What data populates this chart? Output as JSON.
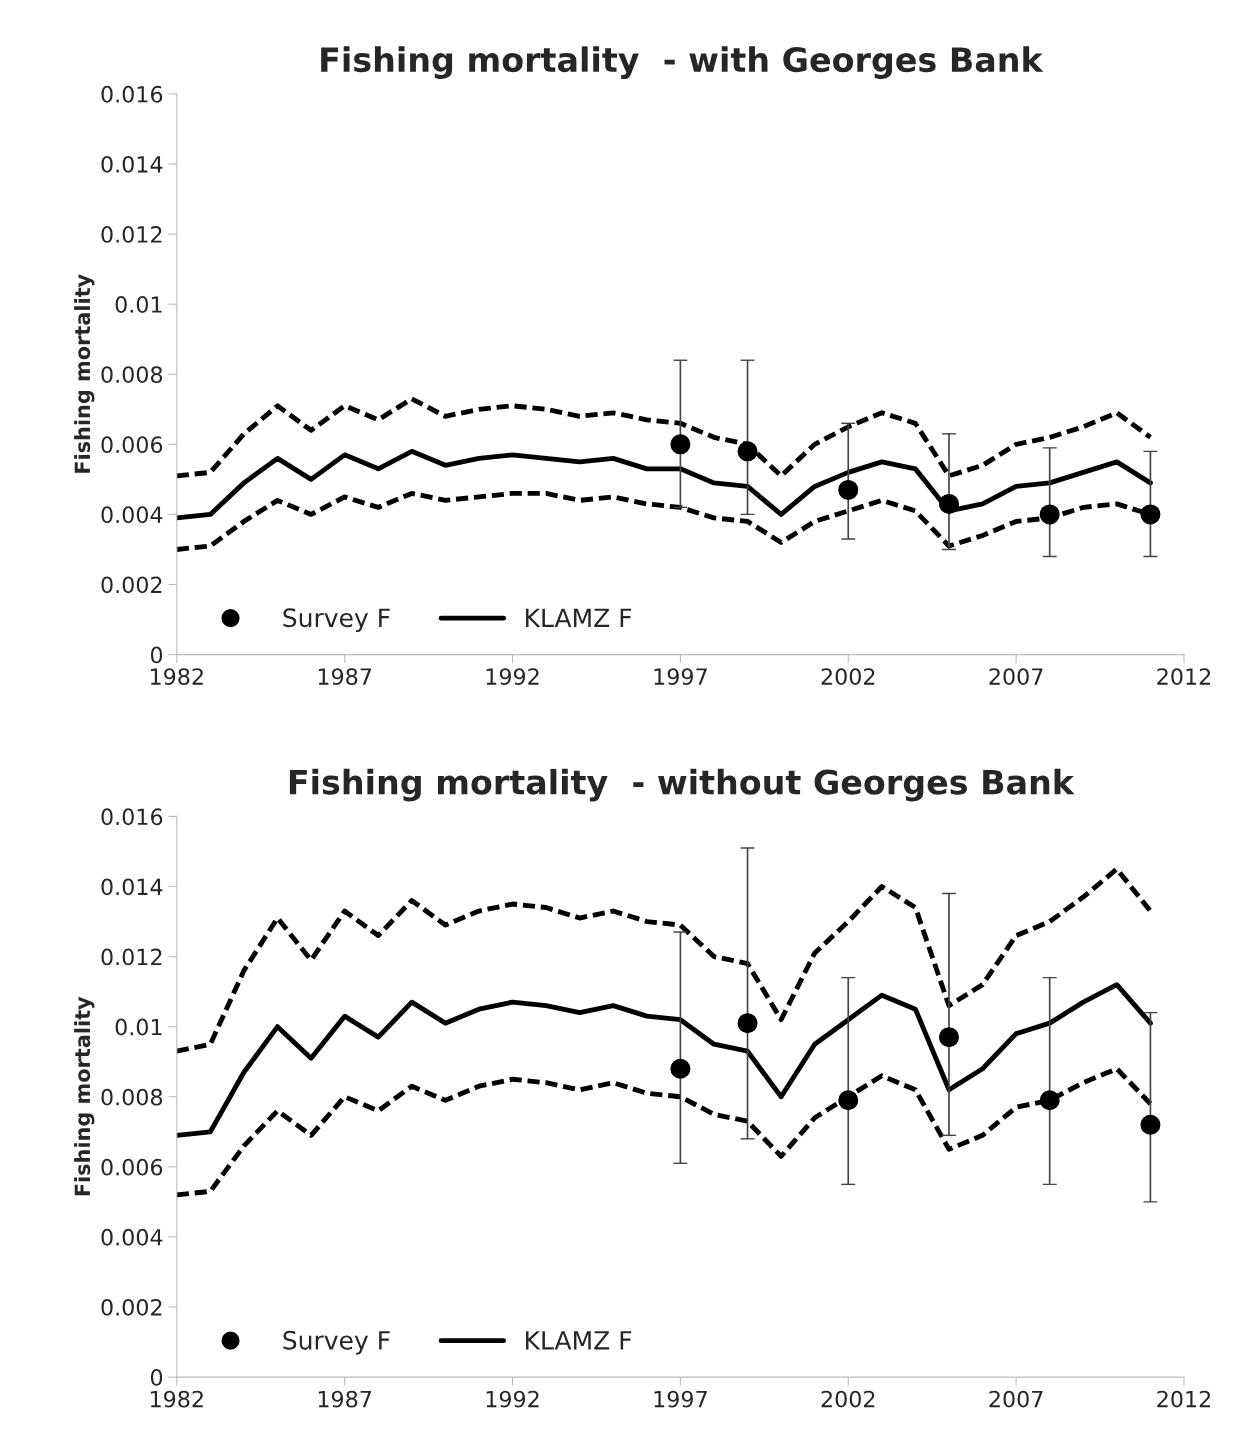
{
  "chart_data": [
    {
      "type": "line",
      "title": "Fishing mortality  - with Georges Bank",
      "ylabel": "Fishing mortality",
      "xlim": [
        1982,
        2012
      ],
      "xticks": [
        1982,
        1987,
        1992,
        1997,
        2002,
        2007,
        2012
      ],
      "ylim": [
        0,
        0.016
      ],
      "yticks": [
        0,
        0.002,
        0.004,
        0.006,
        0.008,
        0.01,
        0.012,
        0.014,
        0.016
      ],
      "grid": false,
      "legend": "bottom left",
      "x": [
        1982,
        1983,
        1984,
        1985,
        1986,
        1987,
        1988,
        1989,
        1990,
        1991,
        1992,
        1993,
        1994,
        1995,
        1996,
        1997,
        1998,
        1999,
        2000,
        2001,
        2002,
        2003,
        2004,
        2005,
        2006,
        2007,
        2008,
        2009,
        2010,
        2011
      ],
      "series": [
        {
          "name": "Survey F",
          "type": "scatter",
          "marker": "circle",
          "color": "#000000",
          "x": [
            1997,
            1999,
            2002,
            2005,
            2008,
            2011
          ],
          "values": [
            0.006,
            0.0058,
            0.0047,
            0.0043,
            0.004,
            0.004
          ],
          "errors": [
            [
              0.0042,
              0.0084
            ],
            [
              0.004,
              0.0084
            ],
            [
              0.0033,
              0.0066
            ],
            [
              0.003,
              0.0063
            ],
            [
              0.0028,
              0.0059
            ],
            [
              0.0028,
              0.0058
            ]
          ]
        },
        {
          "name": "KLAMZ F",
          "line_style": "solid",
          "color": "#000000",
          "values": [
            0.0039,
            0.004,
            0.0049,
            0.0056,
            0.005,
            0.0057,
            0.0053,
            0.0058,
            0.0054,
            0.0056,
            0.0057,
            0.0056,
            0.0055,
            0.0056,
            0.0053,
            0.0053,
            0.0049,
            0.0048,
            0.004,
            0.0048,
            0.0052,
            0.0055,
            0.0053,
            0.0041,
            0.0043,
            0.0048,
            0.0049,
            0.0052,
            0.0055,
            0.0049
          ]
        },
        {
          "type": "line",
          "line_style": "dashed",
          "color": "#000000",
          "values": [
            0.0051,
            0.0052,
            0.0063,
            0.0071,
            0.0064,
            0.0071,
            0.0067,
            0.0073,
            0.0068,
            0.007,
            0.0071,
            0.007,
            0.0068,
            0.0069,
            0.0067,
            0.0066,
            0.0062,
            0.006,
            0.0051,
            0.006,
            0.0065,
            0.0069,
            0.0066,
            0.0051,
            0.0054,
            0.006,
            0.0062,
            0.0065,
            0.0069,
            0.0062
          ]
        },
        {
          "type": "line",
          "line_style": "dashed",
          "color": "#000000",
          "values": [
            0.003,
            0.0031,
            0.0038,
            0.0044,
            0.004,
            0.0045,
            0.0042,
            0.0046,
            0.0044,
            0.0045,
            0.0046,
            0.0046,
            0.0044,
            0.0045,
            0.0043,
            0.0042,
            0.0039,
            0.0038,
            0.0032,
            0.0038,
            0.0041,
            0.0044,
            0.0041,
            0.0031,
            0.0034,
            0.0038,
            0.0039,
            0.0042,
            0.0043,
            0.004
          ]
        }
      ]
    },
    {
      "type": "line",
      "title": "Fishing mortality  - without Georges Bank",
      "ylabel": "Fishing mortality",
      "xlim": [
        1982,
        2012
      ],
      "xticks": [
        1982,
        1987,
        1992,
        1997,
        2002,
        2007,
        2012
      ],
      "ylim": [
        0,
        0.016
      ],
      "yticks": [
        0,
        0.002,
        0.004,
        0.006,
        0.008,
        0.01,
        0.012,
        0.014,
        0.016
      ],
      "grid": false,
      "legend": "bottom left",
      "x": [
        1982,
        1983,
        1984,
        1985,
        1986,
        1987,
        1988,
        1989,
        1990,
        1991,
        1992,
        1993,
        1994,
        1995,
        1996,
        1997,
        1998,
        1999,
        2000,
        2001,
        2002,
        2003,
        2004,
        2005,
        2006,
        2007,
        2008,
        2009,
        2010,
        2011
      ],
      "series": [
        {
          "name": "Survey F",
          "type": "scatter",
          "marker": "circle",
          "color": "#000000",
          "x": [
            1997,
            1999,
            2002,
            2005,
            2008,
            2011
          ],
          "values": [
            0.0088,
            0.0101,
            0.0079,
            0.0097,
            0.0079,
            0.0072
          ],
          "errors": [
            [
              0.0061,
              0.0127
            ],
            [
              0.0068,
              0.0151
            ],
            [
              0.0055,
              0.0114
            ],
            [
              0.0069,
              0.0138
            ],
            [
              0.0055,
              0.0114
            ],
            [
              0.005,
              0.0104
            ]
          ]
        },
        {
          "name": "KLAMZ F",
          "line_style": "solid",
          "color": "#000000",
          "values": [
            0.0069,
            0.007,
            0.0087,
            0.01,
            0.0091,
            0.0103,
            0.0097,
            0.0107,
            0.0101,
            0.0105,
            0.0107,
            0.0106,
            0.0104,
            0.0106,
            0.0103,
            0.0102,
            0.0095,
            0.0093,
            0.008,
            0.0095,
            0.0102,
            0.0109,
            0.0105,
            0.0082,
            0.0088,
            0.0098,
            0.0101,
            0.0107,
            0.0112,
            0.0101
          ]
        },
        {
          "type": "line",
          "line_style": "dashed",
          "color": "#000000",
          "values": [
            0.0093,
            0.0095,
            0.0116,
            0.0131,
            0.0119,
            0.0133,
            0.0126,
            0.0136,
            0.0129,
            0.0133,
            0.0135,
            0.0134,
            0.0131,
            0.0133,
            0.013,
            0.0129,
            0.012,
            0.0118,
            0.0102,
            0.0121,
            0.013,
            0.014,
            0.0134,
            0.0106,
            0.0112,
            0.0126,
            0.013,
            0.0137,
            0.0145,
            0.0133
          ]
        },
        {
          "type": "line",
          "line_style": "dashed",
          "color": "#000000",
          "values": [
            0.0052,
            0.0053,
            0.0066,
            0.0076,
            0.0069,
            0.008,
            0.0076,
            0.0083,
            0.0079,
            0.0083,
            0.0085,
            0.0084,
            0.0082,
            0.0084,
            0.0081,
            0.008,
            0.0075,
            0.0073,
            0.0063,
            0.0074,
            0.008,
            0.0086,
            0.0082,
            0.0065,
            0.0069,
            0.0077,
            0.0079,
            0.0084,
            0.0088,
            0.0078
          ]
        }
      ]
    }
  ]
}
